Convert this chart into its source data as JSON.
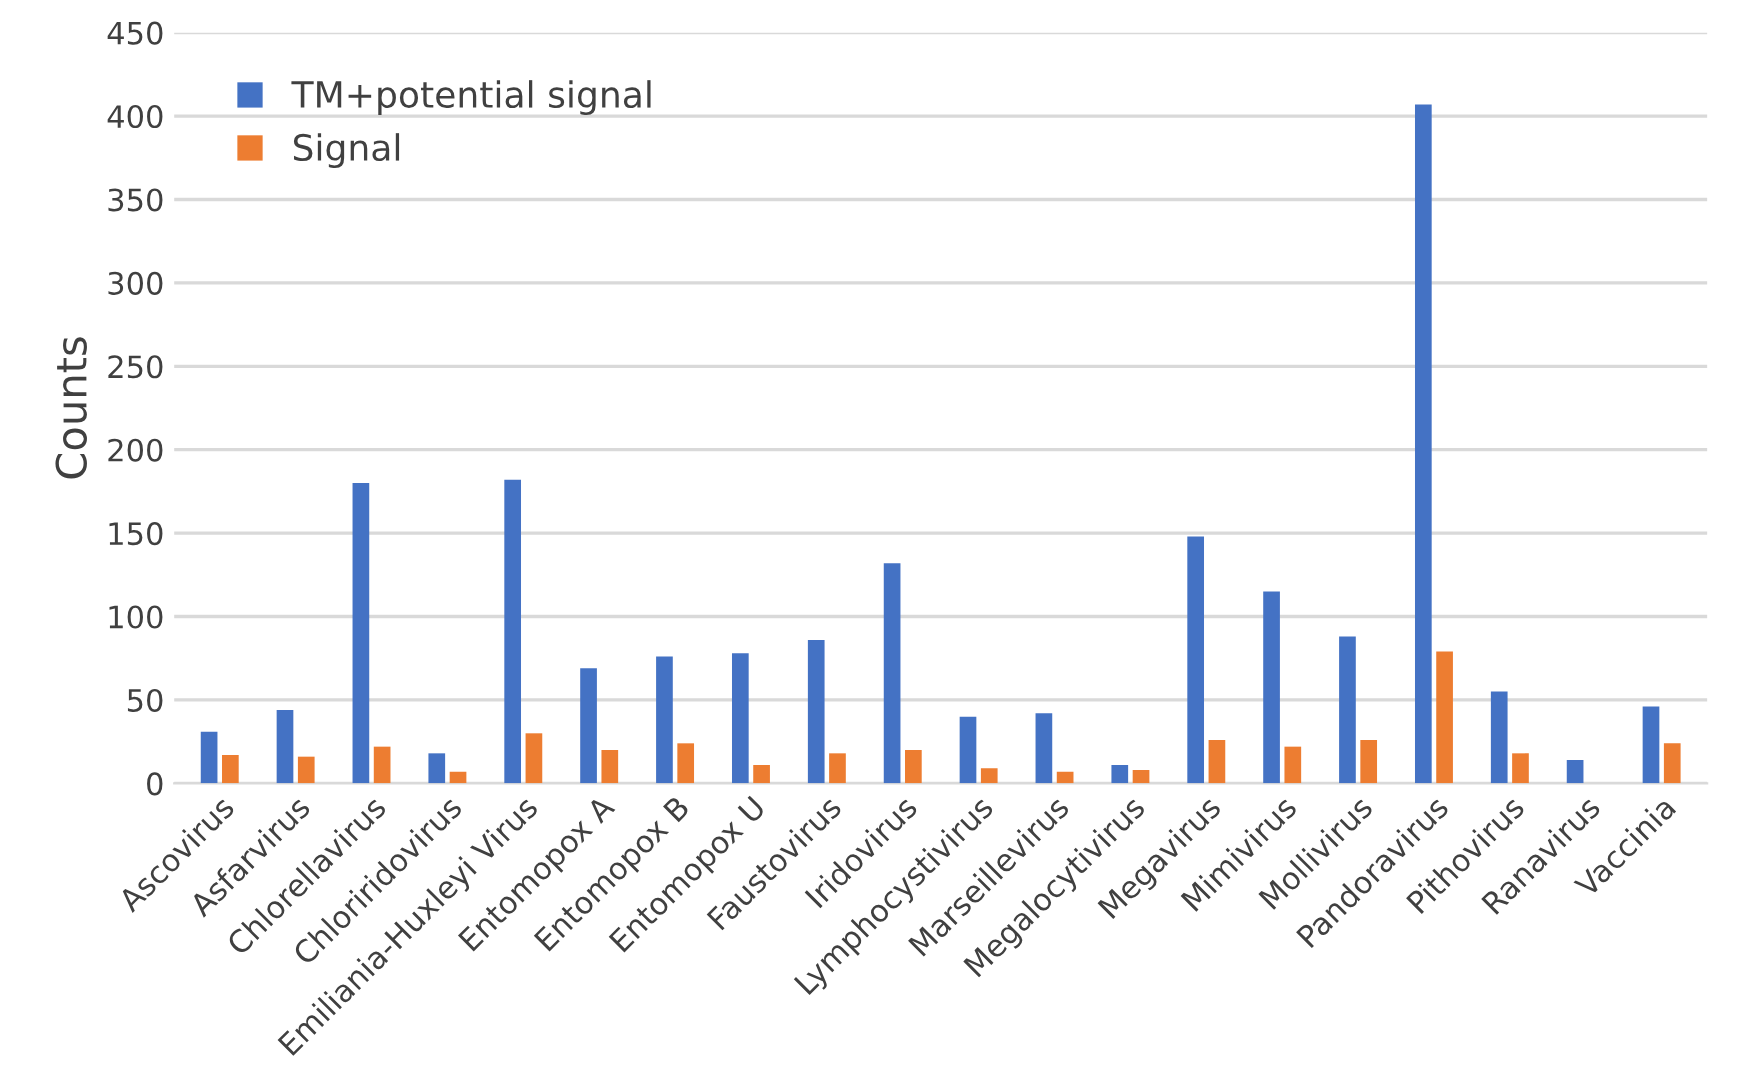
{
  "chart_data": {
    "type": "bar",
    "ylabel": "Counts",
    "categories": [
      "Ascovirus",
      "Asfarvirus",
      "Chlorellavirus",
      "Chloriridovirus",
      "Emiliania-Huxleyi Virus",
      "Entomopox A",
      "Entomopox B",
      "Entomopox U",
      "Faustovirus",
      "Iridovirus",
      "Lymphocystivirus",
      "Marseillevirus",
      "Megalocytivirus",
      "Megavirus",
      "Mimivirus",
      "Mollivirus",
      "Pandoravirus",
      "Pithovirus",
      "Ranavirus",
      "Vaccinia"
    ],
    "series": [
      {
        "name": "TM+potential signal",
        "color": "#4472c4",
        "values": [
          31,
          44,
          180,
          18,
          182,
          69,
          76,
          78,
          86,
          132,
          40,
          42,
          11,
          148,
          115,
          88,
          407,
          55,
          14,
          46
        ]
      },
      {
        "name": "Signal",
        "color": "#ed7d31",
        "values": [
          17,
          16,
          22,
          7,
          30,
          20,
          24,
          11,
          18,
          20,
          9,
          7,
          8,
          26,
          22,
          26,
          79,
          18,
          null,
          24
        ]
      }
    ],
    "ylim": [
      0,
      450
    ],
    "yticks": [
      0,
      50,
      100,
      150,
      200,
      250,
      300,
      350,
      400,
      450
    ],
    "grid": "y",
    "legend": "top left"
  }
}
